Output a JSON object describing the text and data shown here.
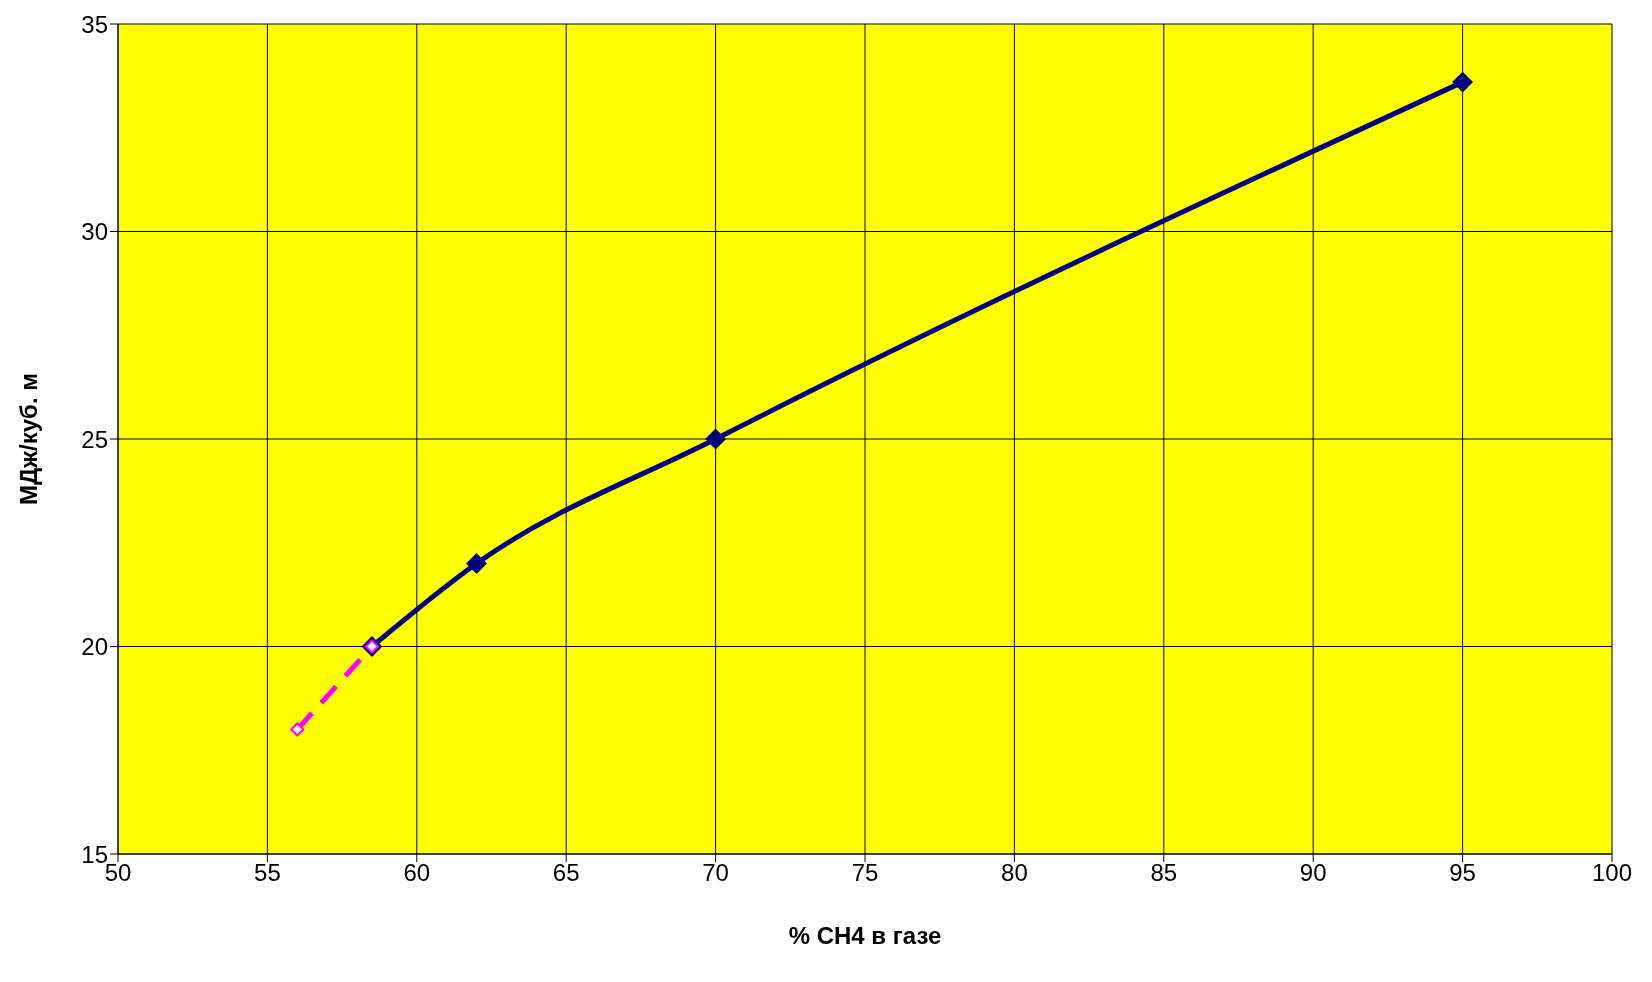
{
  "chart_data": {
    "type": "line",
    "xlabel": "% CH4 в газе",
    "ylabel": "МДж/куб. м",
    "xlim": [
      50,
      100
    ],
    "xticks": [
      50,
      55,
      60,
      65,
      70,
      75,
      80,
      85,
      90,
      95,
      100
    ],
    "ylim": [
      15,
      35
    ],
    "yticks": [
      15,
      20,
      25,
      30,
      35
    ],
    "grid": true,
    "marker": "diamond",
    "line_style": "solid",
    "series": [
      {
        "color": "#000080",
        "x": [
          58.5,
          62,
          70,
          95
        ],
        "values": [
          20,
          22,
          25,
          33.6
        ]
      },
      {
        "color": "#ff00ff",
        "x": [
          56,
          58.5
        ],
        "values": [
          18,
          20
        ],
        "line_style": "dashed"
      }
    ]
  }
}
